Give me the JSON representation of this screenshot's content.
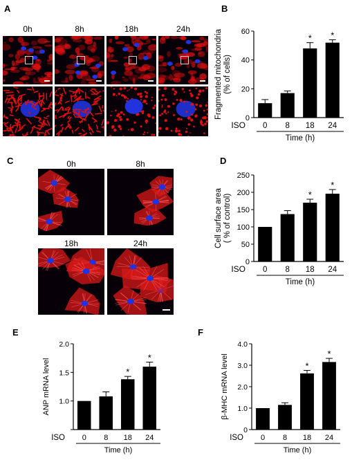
{
  "panels": {
    "A": {
      "letter": "A",
      "time_labels": [
        "0h",
        "8h",
        "18h",
        "24h"
      ]
    },
    "B": {
      "letter": "B"
    },
    "C": {
      "letter": "C",
      "time_labels": [
        "0h",
        "8h",
        "18h",
        "24h"
      ]
    },
    "D": {
      "letter": "D"
    },
    "E": {
      "letter": "E"
    },
    "F": {
      "letter": "F"
    }
  },
  "colors": {
    "mitochondria": "#e01010",
    "actin": "#d81818",
    "nuclei": "#2233dd",
    "background": "#080008",
    "bar": "#000000"
  },
  "chart_data": [
    {
      "panel": "B",
      "type": "bar",
      "categories": [
        "0",
        "8",
        "18",
        "24"
      ],
      "values": [
        10,
        17,
        48,
        52
      ],
      "errors": [
        2.5,
        1.5,
        4,
        2
      ],
      "significant": [
        false,
        false,
        true,
        true
      ],
      "ylabel": "Fragmented mitochondria (% of cells)",
      "ylabel_lines": [
        "Fragmented mitochondria",
        "(% of cells)"
      ],
      "row_label": "ISO",
      "xlabel": "Time (h)",
      "ylim": [
        0,
        60
      ],
      "yticks": [
        0,
        20,
        40,
        60
      ],
      "ytick_labels": [
        "0",
        "20",
        "40",
        "60"
      ]
    },
    {
      "panel": "D",
      "type": "bar",
      "categories": [
        "0",
        "8",
        "18",
        "24"
      ],
      "values": [
        100,
        137,
        170,
        196
      ],
      "errors": [
        0,
        10,
        10,
        12
      ],
      "significant": [
        false,
        false,
        true,
        true
      ],
      "ylabel": "Cell surface area (% of control)",
      "ylabel_lines": [
        "Cell surface area",
        "( % of control)"
      ],
      "row_label": "ISO",
      "xlabel": "Time (h)",
      "ylim": [
        0,
        250
      ],
      "yticks": [
        0,
        50,
        100,
        150,
        200,
        250
      ],
      "ytick_labels": [
        "0",
        "50",
        "100",
        "150",
        "200",
        "250"
      ]
    },
    {
      "panel": "E",
      "type": "bar",
      "categories": [
        "0",
        "8",
        "18",
        "24"
      ],
      "values": [
        1.0,
        1.08,
        1.38,
        1.6
      ],
      "errors": [
        0,
        0.08,
        0.05,
        0.08
      ],
      "significant": [
        false,
        false,
        true,
        true
      ],
      "ylabel": "ANP mRNA level",
      "ylabel_lines": [
        "ANP mRNA level"
      ],
      "row_label": "ISO",
      "xlabel": "Time (h)",
      "ylim": [
        0.5,
        2.0
      ],
      "yticks": [
        0.5,
        1.0,
        1.5,
        2.0
      ],
      "ytick_labels": [
        "",
        "1.0",
        "1.5",
        "2.0"
      ]
    },
    {
      "panel": "F",
      "type": "bar",
      "categories": [
        "0",
        "8",
        "18",
        "24"
      ],
      "values": [
        1.0,
        1.15,
        2.62,
        3.15
      ],
      "errors": [
        0,
        0.1,
        0.14,
        0.17
      ],
      "significant": [
        false,
        false,
        true,
        true
      ],
      "ylabel": "β-MHC mRNA level",
      "ylabel_lines": [
        "β-MHC mRNA level"
      ],
      "row_label": "ISO",
      "xlabel": "Time (h)",
      "ylim": [
        0,
        4.0
      ],
      "yticks": [
        0,
        1.0,
        2.0,
        3.0,
        4.0
      ],
      "ytick_labels": [
        "0",
        "1.0",
        "2.0",
        "3.0",
        "4.0"
      ]
    }
  ]
}
